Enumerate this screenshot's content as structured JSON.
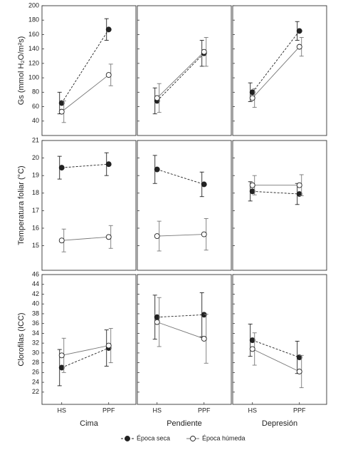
{
  "chart_data": {
    "type": "line",
    "categories": [
      "HS",
      "PPF"
    ],
    "columns": [
      "Cima",
      "Pendiente",
      "Depresión"
    ],
    "series": [
      {
        "name": "Época seca",
        "color": "#222222",
        "marker_fill": "#222222",
        "line_style": "dashed"
      },
      {
        "name": "Época húmeda",
        "color": "#777777",
        "marker_fill": "#ffffff",
        "line_style": "solid"
      }
    ],
    "rows": [
      {
        "y_label": "Gs (mmol H₂O/m²s)",
        "ylim": [
          20,
          200
        ],
        "yticks": [
          40,
          60,
          80,
          100,
          120,
          140,
          160,
          180,
          200
        ],
        "panels": [
          {
            "series": [
              {
                "values": [
                  65,
                  167
                ],
                "errors": [
                  15,
                  15
                ]
              },
              {
                "values": [
                  53,
                  104
                ],
                "errors": [
                  15,
                  15
                ]
              }
            ]
          },
          {
            "series": [
              {
                "values": [
                  68,
                  134
                ],
                "errors": [
                  18,
                  18
                ]
              },
              {
                "values": [
                  72,
                  136
                ],
                "errors": [
                  20,
                  20
                ]
              }
            ]
          },
          {
            "series": [
              {
                "values": [
                  80,
                  165
                ],
                "errors": [
                  13,
                  13
                ]
              },
              {
                "values": [
                  72,
                  143
                ],
                "errors": [
                  13,
                  13
                ]
              }
            ]
          }
        ]
      },
      {
        "y_label": "Temperatura foliar (°C)",
        "ylim": [
          13.6,
          21
        ],
        "yticks": [
          15,
          16,
          17,
          18,
          19,
          20,
          21
        ],
        "panels": [
          {
            "series": [
              {
                "values": [
                  19.45,
                  19.65
                ],
                "errors": [
                  0.65,
                  0.65
                ]
              },
              {
                "values": [
                  15.3,
                  15.5
                ],
                "errors": [
                  0.65,
                  0.65
                ]
              }
            ]
          },
          {
            "series": [
              {
                "values": [
                  19.35,
                  18.5
                ],
                "errors": [
                  0.8,
                  0.7
                ]
              },
              {
                "values": [
                  15.55,
                  15.65
                ],
                "errors": [
                  0.85,
                  0.9
                ]
              }
            ]
          },
          {
            "series": [
              {
                "values": [
                  18.1,
                  17.95
                ],
                "errors": [
                  0.55,
                  0.6
                ]
              },
              {
                "values": [
                  18.45,
                  18.45
                ],
                "errors": [
                  0.55,
                  0.6
                ]
              }
            ]
          }
        ]
      },
      {
        "y_label": "Clorofilas (ICC)",
        "ylim": [
          19.5,
          46
        ],
        "yticks": [
          22,
          24,
          26,
          28,
          30,
          32,
          34,
          36,
          38,
          40,
          42,
          44,
          46
        ],
        "panels": [
          {
            "series": [
              {
                "values": [
                  27,
                  31
                ],
                "errors": [
                  3.7,
                  3.7
                ]
              },
              {
                "values": [
                  29.5,
                  31.5
                ],
                "errors": [
                  3.5,
                  3.5
                ]
              }
            ]
          },
          {
            "series": [
              {
                "values": [
                  37.3,
                  37.8
                ],
                "errors": [
                  4.5,
                  4.5
                ]
              },
              {
                "values": [
                  36.3,
                  32.9
                ],
                "errors": [
                  5,
                  5
                ]
              }
            ]
          },
          {
            "series": [
              {
                "values": [
                  32.6,
                  29.1
                ],
                "errors": [
                  3.3,
                  3.3
                ]
              },
              {
                "values": [
                  30.8,
                  26.2
                ],
                "errors": [
                  3.3,
                  3.3
                ]
              }
            ]
          }
        ]
      }
    ]
  }
}
